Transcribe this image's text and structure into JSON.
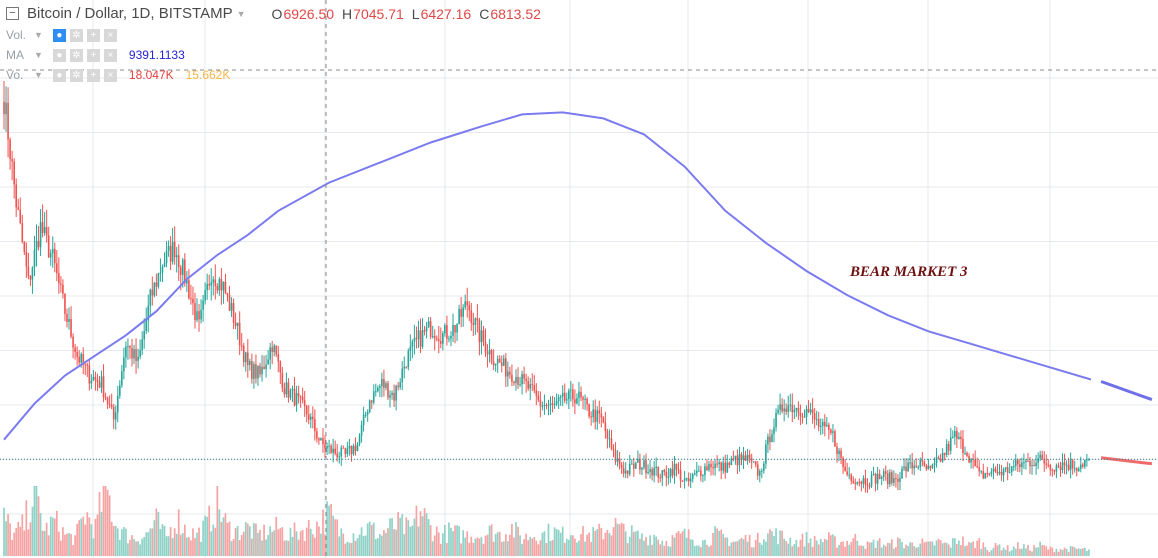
{
  "header": {
    "collapse_icon": "minus-box-icon",
    "title": "Bitcoin / Dollar, 1D, BITSTAMP",
    "ohlc": [
      {
        "label": "O",
        "value": "6926.50"
      },
      {
        "label": "H",
        "value": "7045.71"
      },
      {
        "label": "L",
        "value": "6427.16"
      },
      {
        "label": "C",
        "value": "6813.52"
      }
    ]
  },
  "indicators": [
    {
      "name": "Vol.",
      "values": [],
      "colors": []
    },
    {
      "name": "MA",
      "values": [
        "9391.1133"
      ],
      "colors": [
        "#2424d6"
      ]
    },
    {
      "name": "Vo.",
      "values": [
        "18.047K",
        "15.662K"
      ],
      "colors": [
        "#e84040",
        "#f7b74a"
      ]
    }
  ],
  "annotation": "BEAR MARKET 3",
  "colors": {
    "up": "#26a69a",
    "down": "#ef5350",
    "ma": "#7b7bf0",
    "ma_projection_blue": "#6f6fe8",
    "ma_projection_red": "#f06a6a",
    "volume_up": "#8fd2c7",
    "volume_down": "#f5a3a3",
    "grid": "#e6eaee",
    "price_line": "#2a7f8e",
    "annotation": "#6e1010"
  },
  "chart_data": {
    "type": "candlestick",
    "title": "Bitcoin / Dollar, 1D, BITSTAMP",
    "price_range_approx": [
      5800,
      17500
    ],
    "current_close": 6813.52,
    "grid": true,
    "crosshair": true,
    "moving_average": {
      "name": "MA",
      "value": 9391.1133,
      "shape": [
        [
          0,
          7300
        ],
        [
          15,
          8200
        ],
        [
          30,
          8900
        ],
        [
          45,
          9400
        ],
        [
          60,
          9900
        ],
        [
          75,
          10500
        ],
        [
          90,
          11300
        ],
        [
          105,
          11900
        ],
        [
          120,
          12400
        ],
        [
          135,
          13000
        ],
        [
          160,
          13700
        ],
        [
          185,
          14200
        ],
        [
          210,
          14700
        ],
        [
          235,
          15100
        ],
        [
          255,
          15400
        ],
        [
          275,
          15450
        ],
        [
          295,
          15300
        ],
        [
          315,
          14900
        ],
        [
          335,
          14100
        ],
        [
          355,
          13000
        ],
        [
          375,
          12200
        ],
        [
          395,
          11500
        ],
        [
          415,
          10900
        ],
        [
          435,
          10400
        ],
        [
          455,
          10000
        ],
        [
          475,
          9700
        ],
        [
          495,
          9400
        ],
        [
          515,
          9100
        ],
        [
          535,
          8800
        ]
      ]
    },
    "ma_projection_shape": [
      [
        540,
        8750
      ],
      [
        565,
        8300
      ]
    ],
    "close_projection_shape": [
      [
        540,
        6850
      ],
      [
        565,
        6700
      ]
    ],
    "series": [
      {
        "name": "price",
        "close_shape": [
          [
            0,
            15800
          ],
          [
            6,
            13200
          ],
          [
            12,
            11200
          ],
          [
            18,
            12600
          ],
          [
            24,
            11800
          ],
          [
            30,
            10500
          ],
          [
            36,
            9400
          ],
          [
            42,
            8900
          ],
          [
            48,
            8700
          ],
          [
            54,
            7800
          ],
          [
            60,
            9700
          ],
          [
            66,
            9200
          ],
          [
            72,
            10800
          ],
          [
            78,
            11700
          ],
          [
            84,
            12100
          ],
          [
            90,
            11200
          ],
          [
            96,
            10100
          ],
          [
            102,
            11500
          ],
          [
            108,
            11100
          ],
          [
            114,
            10200
          ],
          [
            120,
            9100
          ],
          [
            126,
            8900
          ],
          [
            132,
            9700
          ],
          [
            138,
            8600
          ],
          [
            144,
            8300
          ],
          [
            150,
            7900
          ],
          [
            156,
            7200
          ],
          [
            162,
            7000
          ],
          [
            168,
            6900
          ],
          [
            174,
            7200
          ],
          [
            180,
            8300
          ],
          [
            186,
            8700
          ],
          [
            192,
            8400
          ],
          [
            198,
            9300
          ],
          [
            204,
            9800
          ],
          [
            210,
            10100
          ],
          [
            216,
            9900
          ],
          [
            222,
            10100
          ],
          [
            228,
            10700
          ],
          [
            234,
            9900
          ],
          [
            240,
            9400
          ],
          [
            246,
            9100
          ],
          [
            252,
            8900
          ],
          [
            258,
            8600
          ],
          [
            264,
            8200
          ],
          [
            270,
            8100
          ],
          [
            276,
            8300
          ],
          [
            282,
            8400
          ],
          [
            288,
            8000
          ],
          [
            294,
            7800
          ],
          [
            300,
            6900
          ],
          [
            306,
            6500
          ],
          [
            312,
            6700
          ],
          [
            318,
            6600
          ],
          [
            324,
            6400
          ],
          [
            330,
            6600
          ],
          [
            336,
            6200
          ],
          [
            342,
            6500
          ],
          [
            348,
            6700
          ],
          [
            354,
            6600
          ],
          [
            360,
            6800
          ],
          [
            366,
            6800
          ],
          [
            372,
            6450
          ],
          [
            378,
            7600
          ],
          [
            384,
            8200
          ],
          [
            390,
            8100
          ],
          [
            396,
            8000
          ],
          [
            402,
            7600
          ],
          [
            408,
            7400
          ],
          [
            414,
            6500
          ],
          [
            420,
            6300
          ],
          [
            426,
            6300
          ],
          [
            432,
            6400
          ],
          [
            438,
            6300
          ],
          [
            444,
            6600
          ],
          [
            450,
            6700
          ],
          [
            456,
            6500
          ],
          [
            462,
            6900
          ],
          [
            468,
            7400
          ],
          [
            474,
            7000
          ],
          [
            480,
            6400
          ],
          [
            486,
            6500
          ],
          [
            492,
            6500
          ],
          [
            498,
            6650
          ],
          [
            504,
            6750
          ],
          [
            510,
            6800
          ],
          [
            516,
            6650
          ],
          [
            522,
            6700
          ],
          [
            528,
            6650
          ],
          [
            534,
            6813.52
          ]
        ]
      },
      {
        "name": "volume",
        "shape": [
          [
            0,
            0.55
          ],
          [
            5,
            0.3
          ],
          [
            10,
            0.45
          ],
          [
            15,
            0.95
          ],
          [
            20,
            0.35
          ],
          [
            25,
            0.5
          ],
          [
            30,
            0.3
          ],
          [
            35,
            0.25
          ],
          [
            40,
            0.6
          ],
          [
            45,
            0.4
          ],
          [
            50,
            1.0
          ],
          [
            55,
            0.45
          ],
          [
            60,
            0.3
          ],
          [
            65,
            0.25
          ],
          [
            70,
            0.3
          ],
          [
            75,
            0.5
          ],
          [
            80,
            0.25
          ],
          [
            85,
            0.55
          ],
          [
            90,
            0.35
          ],
          [
            95,
            0.3
          ],
          [
            100,
            0.45
          ],
          [
            105,
            0.75
          ],
          [
            110,
            0.4
          ],
          [
            115,
            0.35
          ],
          [
            120,
            0.4
          ],
          [
            125,
            0.3
          ],
          [
            130,
            0.35
          ],
          [
            135,
            0.4
          ],
          [
            140,
            0.3
          ],
          [
            145,
            0.35
          ],
          [
            150,
            0.4
          ],
          [
            155,
            0.45
          ],
          [
            160,
            0.6
          ],
          [
            165,
            0.35
          ],
          [
            170,
            0.3
          ],
          [
            175,
            0.35
          ],
          [
            180,
            0.4
          ],
          [
            185,
            0.3
          ],
          [
            190,
            0.4
          ],
          [
            195,
            0.45
          ],
          [
            200,
            0.35
          ],
          [
            205,
            0.65
          ],
          [
            210,
            0.4
          ],
          [
            215,
            0.3
          ],
          [
            220,
            0.35
          ],
          [
            225,
            0.3
          ],
          [
            230,
            0.3
          ],
          [
            235,
            0.3
          ],
          [
            240,
            0.35
          ],
          [
            245,
            0.3
          ],
          [
            250,
            0.4
          ],
          [
            255,
            0.25
          ],
          [
            260,
            0.3
          ],
          [
            265,
            0.3
          ],
          [
            270,
            0.35
          ],
          [
            275,
            0.3
          ],
          [
            280,
            0.35
          ],
          [
            285,
            0.3
          ],
          [
            290,
            0.3
          ],
          [
            295,
            0.35
          ],
          [
            300,
            0.45
          ],
          [
            305,
            0.35
          ],
          [
            310,
            0.3
          ],
          [
            315,
            0.25
          ],
          [
            320,
            0.3
          ],
          [
            325,
            0.2
          ],
          [
            330,
            0.25
          ],
          [
            335,
            0.3
          ],
          [
            340,
            0.25
          ],
          [
            345,
            0.2
          ],
          [
            350,
            0.3
          ],
          [
            355,
            0.25
          ],
          [
            360,
            0.2
          ],
          [
            365,
            0.25
          ],
          [
            370,
            0.2
          ],
          [
            375,
            0.35
          ],
          [
            380,
            0.3
          ],
          [
            385,
            0.25
          ],
          [
            390,
            0.2
          ],
          [
            395,
            0.25
          ],
          [
            400,
            0.2
          ],
          [
            405,
            0.25
          ],
          [
            410,
            0.2
          ],
          [
            415,
            0.2
          ],
          [
            420,
            0.25
          ],
          [
            425,
            0.15
          ],
          [
            430,
            0.2
          ],
          [
            435,
            0.15
          ],
          [
            440,
            0.2
          ],
          [
            445,
            0.15
          ],
          [
            450,
            0.2
          ],
          [
            455,
            0.15
          ],
          [
            460,
            0.2
          ],
          [
            465,
            0.15
          ],
          [
            470,
            0.25
          ],
          [
            475,
            0.15
          ],
          [
            480,
            0.2
          ],
          [
            485,
            0.1
          ],
          [
            490,
            0.15
          ],
          [
            495,
            0.1
          ],
          [
            500,
            0.15
          ],
          [
            505,
            0.1
          ],
          [
            510,
            0.15
          ],
          [
            515,
            0.1
          ],
          [
            520,
            0.1
          ],
          [
            525,
            0.1
          ],
          [
            530,
            0.1
          ],
          [
            534,
            0.08
          ]
        ]
      }
    ]
  }
}
